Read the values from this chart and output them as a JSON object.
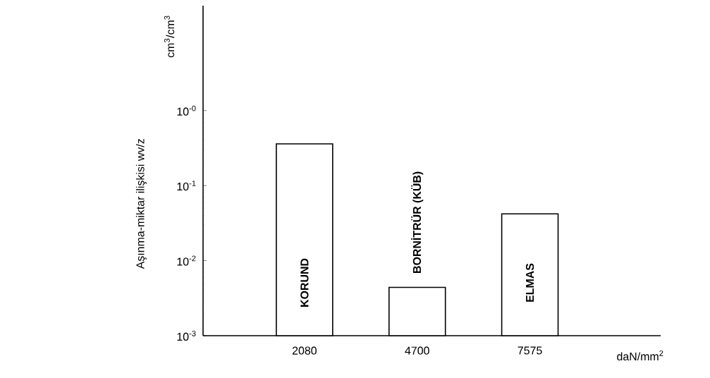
{
  "chart_data": {
    "type": "bar",
    "categories": [
      "2080",
      "4700",
      "7575"
    ],
    "values": [
      0.36,
      0.0044,
      0.042
    ],
    "color": "#000000",
    "xlabel": "daN/mm$^{2}$",
    "ylabel": "Aşınma-miktar ilişkisi wv/z",
    "log": "y",
    "ylim": [
      0.001,
      25
    ],
    "yticks": [
      {
        "value": 0.001,
        "label": "10$^{-3}$"
      },
      {
        "value": 0.01,
        "label": "10$^{-2}$"
      },
      {
        "value": 0.1,
        "label": "10$^{-1}$"
      },
      {
        "value": 1,
        "label": "10$^{-0}$"
      }
    ],
    "grid": false,
    "annotations": [
      "cm$^{3}$/cm$^{3}$",
      "KORUND",
      "BORNİTRÜR (KÜB)",
      "ELMAS"
    ]
  }
}
